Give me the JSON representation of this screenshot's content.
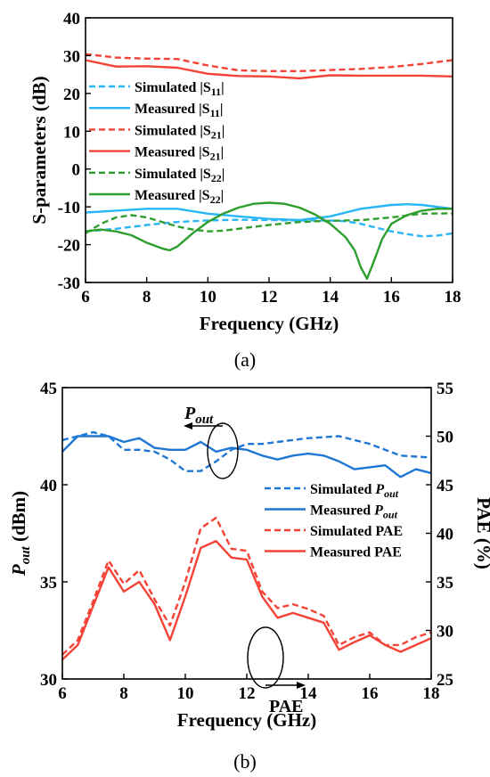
{
  "chart_data": [
    {
      "panel_label": "(a)",
      "type": "line",
      "xlabel": "Frequency (GHz)",
      "ylabel": "S-parameters (dB)",
      "xlim": [
        6,
        18
      ],
      "ylim": [
        -30,
        40
      ],
      "xticks": [
        6,
        8,
        10,
        12,
        14,
        16,
        18
      ],
      "yticks": [
        -30,
        -20,
        -10,
        0,
        10,
        20,
        30,
        40
      ],
      "legend_position": "left",
      "series": [
        {
          "name": "Simulated |S11|",
          "base": "Simulated |S",
          "subscript": "11",
          "color": "#29b6f6",
          "dash": true,
          "x": [
            6,
            7,
            8,
            9,
            10,
            11,
            12,
            13,
            14,
            14.5,
            15,
            15.5,
            16,
            16.5,
            17,
            17.5,
            18
          ],
          "y": [
            -16.5,
            -15.8,
            -14.8,
            -14.0,
            -13.6,
            -13.4,
            -13.5,
            -13.6,
            -13.6,
            -13.8,
            -14.5,
            -15.5,
            -16.5,
            -17.2,
            -17.8,
            -17.6,
            -17.0
          ]
        },
        {
          "name": "Measured |S11|",
          "base": "Measured |S",
          "subscript": "11",
          "color": "#29b6f6",
          "dash": false,
          "x": [
            6,
            7,
            8,
            9,
            10,
            11,
            12,
            13,
            14,
            15,
            16,
            16.5,
            17,
            18
          ],
          "y": [
            -11.5,
            -11.0,
            -10.5,
            -10.5,
            -11.8,
            -12.5,
            -13.2,
            -13.5,
            -12.5,
            -10.5,
            -9.5,
            -9.3,
            -9.5,
            -10.5
          ]
        },
        {
          "name": "Simulated |S21|",
          "base": "Simulated |S",
          "subscript": "21",
          "color": "#f44336",
          "dash": true,
          "x": [
            6,
            7,
            8,
            9,
            10,
            11,
            12,
            13,
            14,
            15,
            16,
            17,
            18
          ],
          "y": [
            30.4,
            29.5,
            29.2,
            29.1,
            27.4,
            26.1,
            25.9,
            25.9,
            26.2,
            26.5,
            27.0,
            27.8,
            28.8
          ]
        },
        {
          "name": "Measured |S21|",
          "base": "Measured |S",
          "subscript": "21",
          "color": "#f44336",
          "dash": false,
          "x": [
            6,
            7,
            8,
            9,
            10,
            11,
            12,
            13,
            14,
            15,
            16,
            17,
            18
          ],
          "y": [
            28.8,
            27.1,
            27.2,
            26.8,
            25.2,
            24.6,
            24.5,
            24.0,
            24.8,
            24.7,
            24.7,
            24.7,
            24.5
          ]
        },
        {
          "name": "Simulated |S22|",
          "base": "Simulated |S",
          "subscript": "22",
          "color": "#2e9e2e",
          "dash": true,
          "x": [
            6,
            6.5,
            7,
            7.5,
            8,
            8.5,
            9,
            9.5,
            10,
            10.5,
            11,
            11.5,
            12,
            13,
            14,
            15,
            16,
            17,
            18
          ],
          "y": [
            -17.0,
            -14.5,
            -12.8,
            -12.2,
            -12.8,
            -14.0,
            -15.2,
            -16.0,
            -16.5,
            -16.3,
            -15.8,
            -15.3,
            -14.8,
            -14.0,
            -13.7,
            -13.5,
            -12.8,
            -11.8,
            -11.7
          ]
        },
        {
          "name": "Measured |S22|",
          "base": "Measured |S",
          "subscript": "22",
          "color": "#2e9e2e",
          "dash": false,
          "x": [
            6,
            6.5,
            7,
            7.5,
            8,
            8.5,
            8.75,
            9,
            9.5,
            10,
            10.5,
            11,
            11.5,
            12,
            12.5,
            13,
            13.5,
            14,
            14.5,
            14.8,
            15,
            15.2,
            15.4,
            15.7,
            16,
            16.5,
            17,
            17.5,
            18
          ],
          "y": [
            -16.5,
            -16.0,
            -16.5,
            -17.5,
            -19.5,
            -21.0,
            -21.5,
            -20.5,
            -17.0,
            -14.0,
            -11.8,
            -10.2,
            -9.2,
            -8.9,
            -9.2,
            -10.2,
            -12.0,
            -14.5,
            -18.0,
            -21.5,
            -26.0,
            -29.0,
            -25.0,
            -18.5,
            -14.5,
            -12.2,
            -11.0,
            -10.5,
            -10.5
          ]
        }
      ]
    },
    {
      "panel_label": "(b)",
      "type": "line",
      "xlabel": "Frequency (GHz)",
      "ylabel": "Pout (dBm)",
      "ylabel_base": "P",
      "ylabel_sub": "out",
      "ylabel_unit": " (dBm)",
      "y2label": "PAE (%)",
      "xlim": [
        6,
        18
      ],
      "ylim": [
        30,
        45
      ],
      "y2lim": [
        25,
        55
      ],
      "xticks": [
        6,
        8,
        10,
        12,
        14,
        16,
        18
      ],
      "yticks": [
        30,
        35,
        40,
        45
      ],
      "y2ticks": [
        25,
        30,
        35,
        40,
        45,
        50,
        55
      ],
      "legend_position": "right",
      "annotations": {
        "pout": {
          "base": "P",
          "sub": "out"
        },
        "pae": "PAE"
      },
      "series": [
        {
          "name": "Simulated Pout",
          "label_base": "Simulated ",
          "label_italic": "P",
          "label_sub": "out",
          "color": "#1f77d4",
          "dash": true,
          "axis": "left",
          "x": [
            6,
            6.5,
            7,
            7.5,
            8,
            8.5,
            9,
            9.5,
            10,
            10.5,
            11,
            11.5,
            12,
            12.5,
            13,
            14,
            15,
            16,
            17,
            18
          ],
          "y": [
            42.3,
            42.5,
            42.7,
            42.5,
            41.8,
            41.8,
            41.7,
            41.3,
            40.7,
            40.7,
            41.2,
            41.8,
            42.1,
            42.1,
            42.2,
            42.4,
            42.5,
            42.1,
            41.5,
            41.4
          ]
        },
        {
          "name": "Measured Pout",
          "label_base": "Measured ",
          "label_italic": "P",
          "label_sub": "out",
          "color": "#1f77d4",
          "dash": false,
          "axis": "left",
          "x": [
            6,
            6.5,
            7,
            7.5,
            8,
            8.5,
            9,
            9.5,
            10,
            10.5,
            11,
            11.5,
            12,
            12.5,
            13,
            13.5,
            14,
            14.5,
            15,
            15.5,
            16,
            16.5,
            17,
            17.5,
            18
          ],
          "y": [
            41.7,
            42.5,
            42.5,
            42.5,
            42.2,
            42.4,
            41.9,
            41.8,
            41.8,
            42.2,
            41.7,
            41.9,
            41.8,
            41.5,
            41.3,
            41.5,
            41.6,
            41.5,
            41.2,
            40.8,
            40.9,
            41.0,
            40.4,
            40.8,
            40.6
          ]
        },
        {
          "name": "Simulated PAE",
          "label_base": "Simulated PAE",
          "color": "#f44336",
          "dash": true,
          "axis": "right",
          "x": [
            6,
            6.5,
            7,
            7.5,
            8,
            8.5,
            9,
            9.5,
            10,
            10.5,
            11,
            11.5,
            12,
            12.5,
            13,
            13.5,
            14,
            14.5,
            15,
            15.5,
            16,
            16.5,
            17,
            17.5,
            18
          ],
          "y": [
            27.5,
            29.0,
            33.0,
            37.2,
            34.8,
            36.2,
            33.2,
            30.5,
            35.0,
            40.5,
            41.6,
            38.4,
            38.2,
            34.0,
            32.3,
            32.7,
            32.2,
            31.5,
            28.5,
            29.3,
            29.8,
            28.5,
            28.5,
            29.3,
            29.8
          ]
        },
        {
          "name": "Measured PAE",
          "label_base": "Measured PAE",
          "color": "#f44336",
          "dash": false,
          "axis": "right",
          "x": [
            6,
            6.5,
            7,
            7.5,
            8,
            8.5,
            9,
            9.5,
            10,
            10.5,
            11,
            11.5,
            12,
            12.5,
            13,
            13.5,
            14,
            14.5,
            15,
            15.5,
            16,
            16.5,
            17,
            17.5,
            18
          ],
          "y": [
            27.0,
            28.5,
            32.5,
            36.5,
            34.0,
            35.0,
            32.7,
            29.0,
            33.5,
            38.5,
            39.2,
            37.5,
            37.3,
            33.5,
            31.3,
            31.8,
            31.3,
            30.8,
            28.0,
            28.8,
            29.5,
            28.5,
            27.8,
            28.5,
            29.2
          ]
        }
      ]
    }
  ]
}
